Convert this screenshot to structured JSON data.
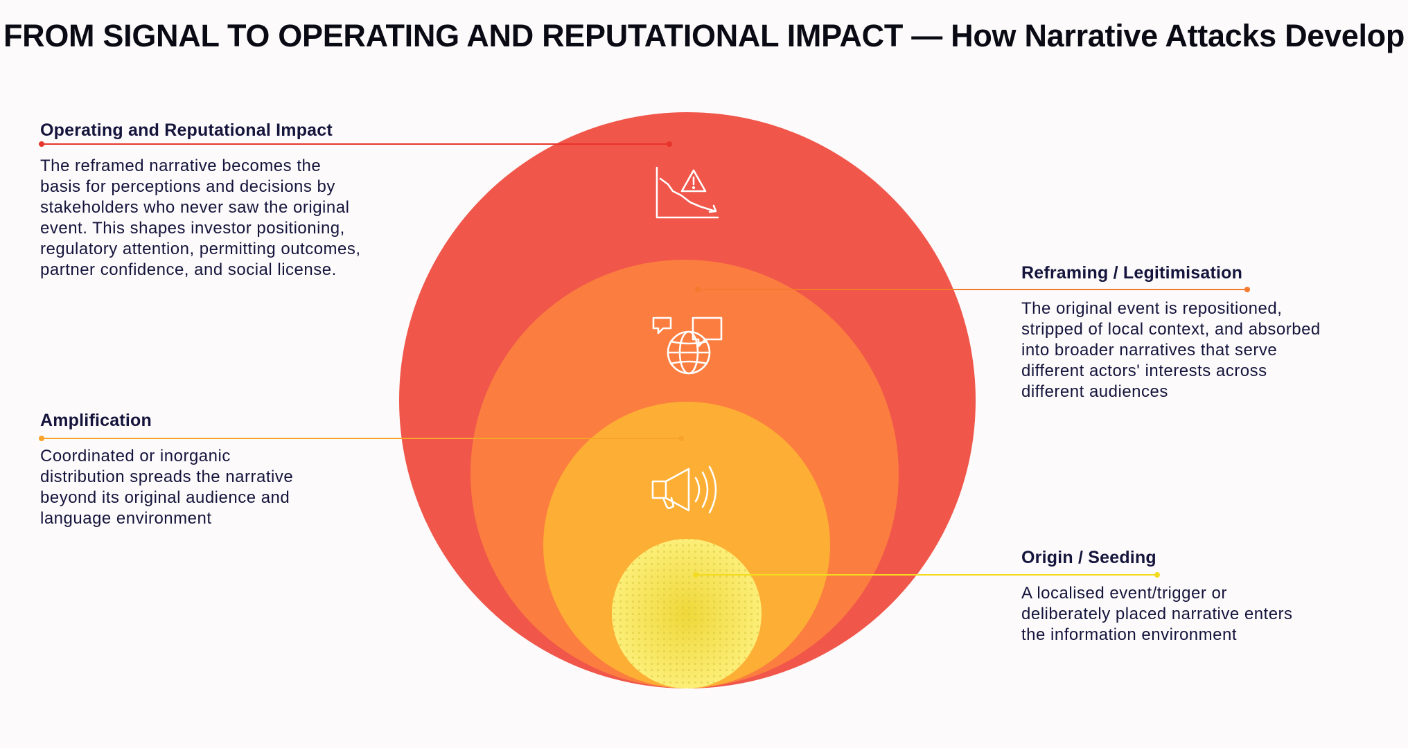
{
  "title": "FROM SIGNAL TO OPERATING AND REPUTATIONAL IMPACT — How Narrative Attacks Develop",
  "colors": {
    "impact": "#f0564a",
    "reframing": "#fb7d40",
    "amplification": "#fdae34",
    "origin": "#fbe967",
    "line_impact": "#e8352b",
    "line_reframing": "#f47a2d",
    "line_amplification": "#f8a32a",
    "line_origin": "#f3db20",
    "icon": "#ffffff",
    "text": "#14143c"
  },
  "stages": {
    "impact": {
      "heading": "Operating and Reputational Impact",
      "body": "The reframed narrative becomes the basis for perceptions and decisions by stakeholders who never saw the original event. This shapes investor positioning, regulatory attention, permitting outcomes, partner confidence, and social license.",
      "icon": "declining-chart-warning-icon"
    },
    "reframing": {
      "heading": "Reframing / Legitimisation",
      "body": "The original event is repositioned, stripped of local context, and absorbed into broader narratives that serve different actors' interests across different audiences",
      "icon": "globe-speech-bubbles-icon"
    },
    "amplification": {
      "heading": "Amplification",
      "body": "Coordinated or inorganic distribution spreads the narrative beyond its original audience and language environment",
      "icon": "megaphone-icon"
    },
    "origin": {
      "heading": "Origin / Seeding",
      "body": "A localised event/trigger or deliberately placed narrative enters the information environment",
      "icon": "dotted-seed-texture"
    }
  }
}
